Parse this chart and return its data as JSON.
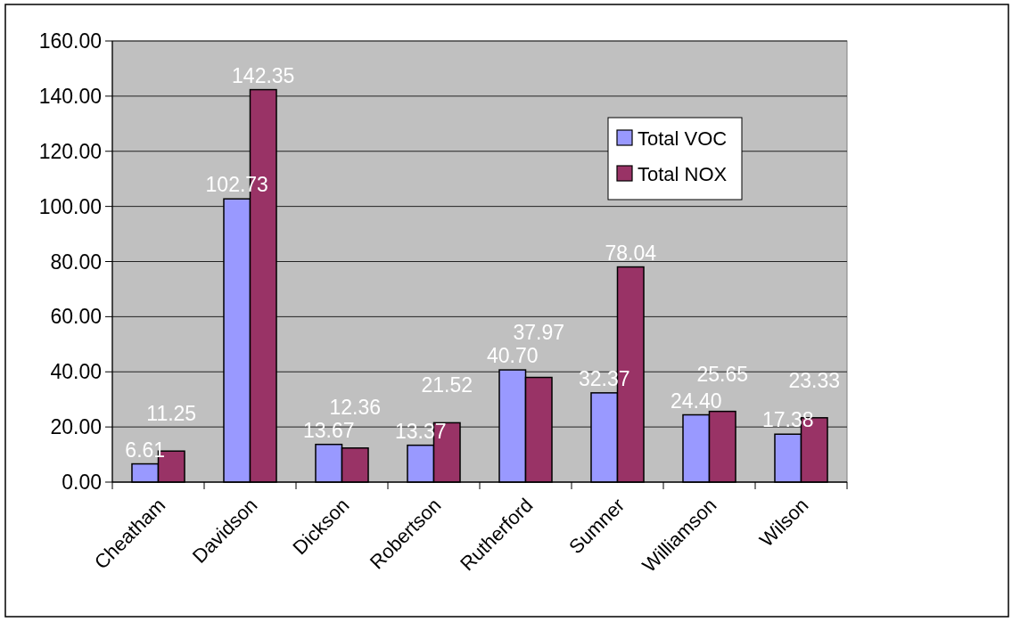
{
  "chart_data": {
    "type": "bar",
    "categories": [
      "Cheatham",
      "Davidson",
      "Dickson",
      "Robertson",
      "Rutherford",
      "Sumner",
      "Williamson",
      "Wilson"
    ],
    "series": [
      {
        "name": "Total VOC",
        "color": "#9999ff",
        "values": [
          6.61,
          102.73,
          13.67,
          13.37,
          40.7,
          32.37,
          24.4,
          17.38
        ],
        "value_labels": [
          "6.61",
          "102.73",
          "13.67",
          "13.37",
          "40.70",
          "32.37",
          "24.40",
          "17.38"
        ]
      },
      {
        "name": "Total NOX",
        "color": "#993366",
        "values": [
          11.25,
          142.35,
          12.36,
          21.52,
          37.97,
          78.04,
          25.65,
          23.33
        ],
        "value_labels": [
          "11.25",
          "142.35",
          "12.36",
          "21.52",
          "37.97",
          "78.04",
          "25.65",
          "23.33"
        ]
      }
    ],
    "ylim": [
      0,
      160
    ],
    "yticks": [
      {
        "value": 0,
        "label": "0.00"
      },
      {
        "value": 20,
        "label": "20.00"
      },
      {
        "value": 40,
        "label": "40.00"
      },
      {
        "value": 60,
        "label": "60.00"
      },
      {
        "value": 80,
        "label": "80.00"
      },
      {
        "value": 100,
        "label": "100.00"
      },
      {
        "value": 120,
        "label": "120.00"
      },
      {
        "value": 140,
        "label": "140.00"
      },
      {
        "value": 160,
        "label": "160.00"
      }
    ],
    "grid": "y",
    "legend": "top right"
  }
}
